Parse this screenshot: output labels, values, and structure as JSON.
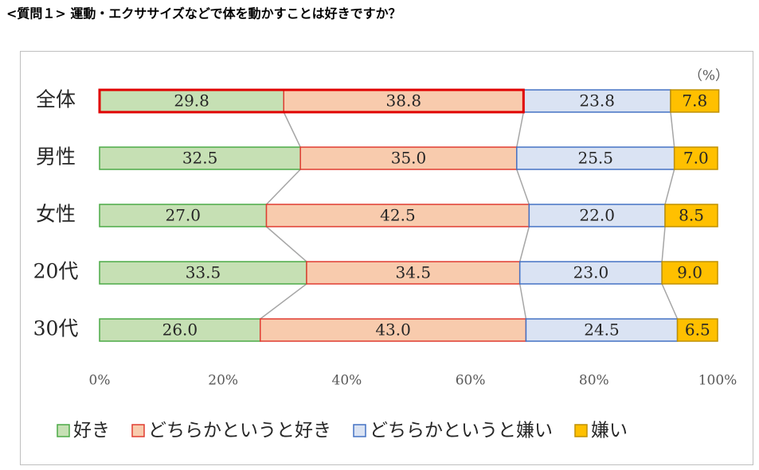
{
  "chart_data": {
    "type": "stacked-bar-horizontal",
    "title": "<質問１> 運動・エクササイズなどで体を動かすことは好きですか？",
    "unit_note": "（%）",
    "categories": [
      "全体",
      "男性",
      "女性",
      "20代",
      "30代"
    ],
    "series": [
      {
        "name": "好き",
        "color": "#c6e0b4",
        "border": "#4caa46",
        "values": [
          29.8,
          32.5,
          27.0,
          33.5,
          26.0
        ],
        "value_labels": [
          "29.8",
          "32.5",
          "27.0",
          "33.5",
          "26.0"
        ]
      },
      {
        "name": "どちらかというと好き",
        "color": "#f8cbad",
        "border": "#e03c31",
        "values": [
          38.8,
          35.0,
          42.5,
          34.5,
          43.0
        ],
        "value_labels": [
          "38.8",
          "35.0",
          "42.5",
          "34.5",
          "43.0"
        ]
      },
      {
        "name": "どちらかというと嫌い",
        "color": "#dae3f3",
        "border": "#4472c4",
        "values": [
          23.8,
          25.5,
          22.0,
          23.0,
          24.5
        ],
        "value_labels": [
          "23.8",
          "25.5",
          "22.0",
          "23.0",
          "24.5"
        ]
      },
      {
        "name": "嫌い",
        "color": "#ffc000",
        "border": "#bf9000",
        "values": [
          7.8,
          7.0,
          8.5,
          9.0,
          6.5
        ],
        "value_labels": [
          "7.8",
          "7.0",
          "8.5",
          "9.0",
          "6.5"
        ]
      }
    ],
    "xlim": [
      0,
      100
    ],
    "xticks": [
      {
        "value": 0,
        "label": "0%"
      },
      {
        "value": 20,
        "label": "20%"
      },
      {
        "value": 40,
        "label": "40%"
      },
      {
        "value": 60,
        "label": "60%"
      },
      {
        "value": 80,
        "label": "80%"
      },
      {
        "value": 100,
        "label": "100%"
      }
    ],
    "grid": false,
    "legend": "bottom"
  }
}
